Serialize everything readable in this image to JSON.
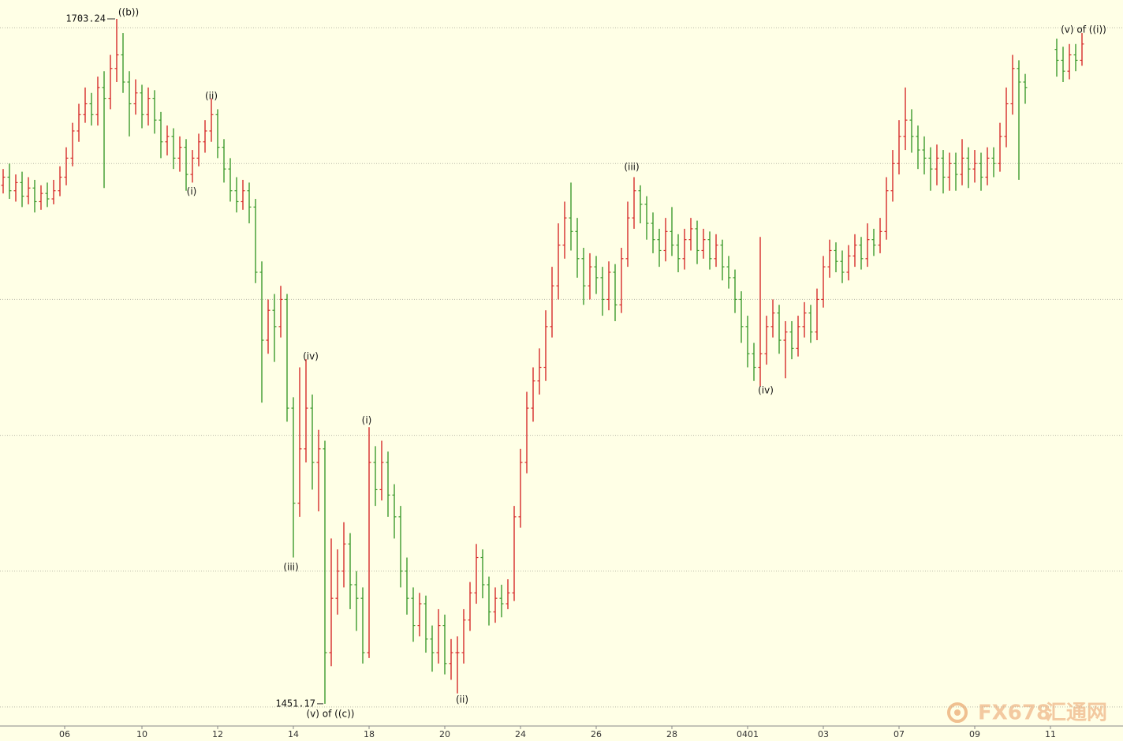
{
  "chart_data": {
    "type": "ohlc",
    "up_color": "#d62a2a",
    "down_color": "#3c9a2c",
    "grid": true,
    "ylim": [
      1443,
      1710.2
    ],
    "ygrid": [
      1450,
      1500,
      1550,
      1600,
      1650,
      1700
    ],
    "xlim": [
      -0.5,
      177.5
    ],
    "xticks": [
      {
        "value": 9.75,
        "label": "06"
      },
      {
        "value": 22,
        "label": "10"
      },
      {
        "value": 34,
        "label": "12"
      },
      {
        "value": 46,
        "label": "14"
      },
      {
        "value": 58,
        "label": "18"
      },
      {
        "value": 70,
        "label": "20"
      },
      {
        "value": 82,
        "label": "24"
      },
      {
        "value": 94,
        "label": "26"
      },
      {
        "value": 106,
        "label": "28"
      },
      {
        "value": 118,
        "label": "0401"
      },
      {
        "value": 130,
        "label": "03"
      },
      {
        "value": 142,
        "label": "07"
      },
      {
        "value": 154,
        "label": "09"
      },
      {
        "value": 166,
        "label": "11"
      }
    ],
    "open": [
      1642,
      1645,
      1640,
      1643,
      1638,
      1641,
      1636,
      1639,
      1637,
      1640,
      1645,
      1652,
      1662,
      1668,
      1672,
      1668,
      1678,
      1674,
      1685,
      1690,
      1680,
      1672,
      1676,
      1668,
      1674,
      1666,
      1658,
      1660,
      1652,
      1656,
      1646,
      1652,
      1658,
      1662,
      1668,
      1656,
      1648,
      1640,
      1636,
      1640,
      1634,
      1610,
      1585,
      1596,
      1590,
      1600,
      1560,
      1525,
      1545,
      1560,
      1540,
      1545,
      1470,
      1490,
      1500,
      1510,
      1495,
      1490,
      1470,
      1540,
      1530,
      1540,
      1528,
      1520,
      1500,
      1490,
      1480,
      1488,
      1475,
      1470,
      1480,
      1466,
      1470,
      1470,
      1482,
      1492,
      1505,
      1495,
      1485,
      1490,
      1488,
      1492,
      1520,
      1540,
      1560,
      1570,
      1575,
      1590,
      1605,
      1620,
      1630,
      1625,
      1615,
      1605,
      1612,
      1608,
      1600,
      1610,
      1598,
      1615,
      1630,
      1640,
      1635,
      1628,
      1622,
      1618,
      1625,
      1620,
      1615,
      1622,
      1626,
      1618,
      1622,
      1615,
      1620,
      1612,
      1608,
      1600,
      1590,
      1580,
      1575,
      1580,
      1590,
      1595,
      1585,
      1588,
      1582,
      1590,
      1595,
      1588,
      1600,
      1612,
      1618,
      1614,
      1610,
      1616,
      1620,
      1615,
      1622,
      1620,
      1625,
      1640,
      1650,
      1660,
      1666,
      1660,
      1655,
      1652,
      1648,
      1652,
      1645,
      1650,
      1646,
      1652,
      1648,
      1650,
      1645,
      1652,
      1650,
      1660,
      1672,
      1685,
      1680,
      null,
      null,
      null,
      null,
      1692,
      1688,
      1684,
      1690,
      1688
    ],
    "high": [
      1648,
      1650,
      1646,
      1647,
      1645,
      1644,
      1642,
      1643,
      1644,
      1649,
      1656,
      1665,
      1672,
      1678,
      1676,
      1682,
      1684,
      1690,
      1703.24,
      1698,
      1684,
      1681,
      1679,
      1678,
      1677,
      1669,
      1664,
      1663,
      1660,
      1659,
      1655,
      1661,
      1666,
      1674,
      1670,
      1659,
      1652,
      1645,
      1644,
      1643,
      1637,
      1614,
      1600,
      1602,
      1605,
      1602,
      1564,
      1575,
      1578,
      1565,
      1552,
      1548,
      1512,
      1508,
      1518,
      1514,
      1500,
      1494,
      1553,
      1546,
      1548,
      1544,
      1532,
      1524,
      1505,
      1494,
      1492,
      1491,
      1480,
      1486,
      1484,
      1475,
      1476,
      1486,
      1496,
      1510,
      1508,
      1498,
      1494,
      1495,
      1497,
      1524,
      1545,
      1566,
      1575,
      1582,
      1596,
      1612,
      1628,
      1636,
      1643,
      1630,
      1619,
      1617,
      1616,
      1612,
      1614,
      1613,
      1619,
      1636,
      1645,
      1642,
      1638,
      1632,
      1626,
      1630,
      1634,
      1624,
      1626,
      1630,
      1629,
      1626,
      1625,
      1624,
      1622,
      1616,
      1611,
      1603,
      1594,
      1584,
      1623,
      1594,
      1600,
      1598,
      1592,
      1592,
      1594,
      1599,
      1598,
      1604,
      1616,
      1622,
      1621,
      1618,
      1620,
      1624,
      1623,
      1628,
      1626,
      1630,
      1645,
      1655,
      1666,
      1678,
      1670,
      1664,
      1660,
      1656,
      1657,
      1655,
      1654,
      1654,
      1659,
      1656,
      1655,
      1654,
      1656,
      1656,
      1665,
      1678,
      1690,
      1688,
      1683,
      null,
      null,
      null,
      null,
      1696,
      1693,
      1694,
      1694,
      1698
    ],
    "low": [
      1639,
      1637,
      1636,
      1634,
      1635,
      1632,
      1633,
      1634,
      1635,
      1638,
      1642,
      1649,
      1658,
      1665,
      1664,
      1664,
      1641,
      1670,
      1680,
      1676,
      1660,
      1668,
      1663,
      1664,
      1661,
      1652,
      1653,
      1648,
      1647,
      1640,
      1643,
      1649,
      1654,
      1658,
      1652,
      1643,
      1636,
      1632,
      1633,
      1628,
      1606,
      1562,
      1580,
      1577,
      1586,
      1555,
      1505,
      1520,
      1540,
      1530,
      1522,
      1451.17,
      1465,
      1484,
      1494,
      1486,
      1478,
      1466,
      1468,
      1524,
      1526,
      1520,
      1512,
      1494,
      1484,
      1474,
      1476,
      1470,
      1463,
      1466,
      1462,
      1460,
      1455,
      1466,
      1478,
      1488,
      1490,
      1480,
      1481,
      1483,
      1486,
      1489,
      1516,
      1536,
      1555,
      1565,
      1570,
      1586,
      1600,
      1615,
      1618,
      1608,
      1598,
      1600,
      1602,
      1594,
      1596,
      1592,
      1595,
      1612,
      1626,
      1628,
      1622,
      1617,
      1612,
      1614,
      1616,
      1610,
      1611,
      1618,
      1613,
      1615,
      1611,
      1612,
      1607,
      1604,
      1595,
      1584,
      1575,
      1570,
      1568,
      1576,
      1586,
      1580,
      1571,
      1578,
      1579,
      1586,
      1584,
      1585,
      1597,
      1608,
      1610,
      1606,
      1607,
      1612,
      1611,
      1612,
      1616,
      1617,
      1622,
      1636,
      1646,
      1655,
      1654,
      1648,
      1646,
      1640,
      1642,
      1639,
      1640,
      1640,
      1642,
      1641,
      1643,
      1640,
      1642,
      1645,
      1647,
      1656,
      1668,
      1644,
      1672,
      null,
      null,
      null,
      null,
      1682,
      1680,
      1681,
      1684,
      1686
    ],
    "close": [
      1645,
      1640,
      1643,
      1638,
      1641,
      1636,
      1639,
      1637,
      1640,
      1645,
      1652,
      1662,
      1668,
      1672,
      1668,
      1678,
      1674,
      1685,
      1690,
      1680,
      1672,
      1676,
      1668,
      1674,
      1666,
      1658,
      1660,
      1652,
      1656,
      1646,
      1652,
      1658,
      1662,
      1668,
      1656,
      1648,
      1640,
      1636,
      1640,
      1634,
      1610,
      1585,
      1596,
      1590,
      1600,
      1560,
      1525,
      1545,
      1560,
      1540,
      1545,
      1470,
      1490,
      1500,
      1510,
      1495,
      1490,
      1470,
      1540,
      1530,
      1540,
      1528,
      1520,
      1500,
      1490,
      1480,
      1488,
      1475,
      1470,
      1480,
      1466,
      1470,
      1470,
      1482,
      1492,
      1505,
      1495,
      1485,
      1490,
      1488,
      1492,
      1520,
      1540,
      1560,
      1570,
      1575,
      1590,
      1605,
      1620,
      1630,
      1625,
      1615,
      1605,
      1612,
      1608,
      1600,
      1610,
      1598,
      1615,
      1630,
      1640,
      1635,
      1628,
      1622,
      1618,
      1625,
      1620,
      1615,
      1622,
      1626,
      1618,
      1622,
      1615,
      1620,
      1612,
      1608,
      1600,
      1590,
      1580,
      1575,
      1580,
      1590,
      1595,
      1585,
      1588,
      1582,
      1590,
      1595,
      1588,
      1600,
      1612,
      1618,
      1614,
      1610,
      1616,
      1620,
      1615,
      1622,
      1620,
      1625,
      1640,
      1650,
      1660,
      1666,
      1660,
      1655,
      1652,
      1648,
      1652,
      1645,
      1650,
      1646,
      1652,
      1648,
      1650,
      1645,
      1652,
      1650,
      1660,
      1672,
      1685,
      1680,
      1678,
      null,
      null,
      null,
      null,
      1688,
      1684,
      1690,
      1688,
      1694
    ],
    "annotations": [
      "((b))",
      "(i)",
      "(ii)",
      "(iii)",
      "(iv)",
      "(v) of ((c))",
      "(i)",
      "(ii)",
      "(iii)",
      "(iv)",
      "(v) of ((i))"
    ],
    "watermark": "FX678",
    "watermark_cn": "汇通网"
  }
}
